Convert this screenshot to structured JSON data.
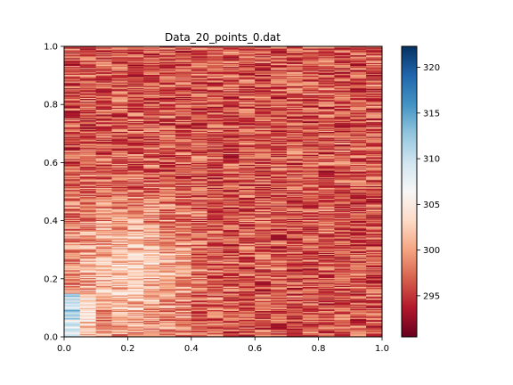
{
  "chart_data": {
    "type": "heatmap",
    "title": "Data_20_points_0.dat",
    "colormap": "RdBu",
    "n_columns": 20,
    "n_rows": 300,
    "xlim": [
      0.0,
      1.0
    ],
    "ylim": [
      0.0,
      1.0
    ],
    "xticks": [
      "0.0",
      "0.2",
      "0.4",
      "0.6",
      "0.8",
      "1.0"
    ],
    "yticks": [
      "0.0",
      "0.2",
      "0.4",
      "0.6",
      "0.8",
      "1.0"
    ],
    "colorbar": {
      "range": [
        290.5,
        322.3
      ],
      "ticks": [
        "295",
        "300",
        "305",
        "310",
        "315",
        "320"
      ]
    },
    "value_summary": {
      "typical_range": [
        292,
        302
      ],
      "warm_region_lower_left": "values about 303-305 around x 0.05-0.35, y 0.05-0.45",
      "cool_spot": "values about 306-312 at x 0.0-0.05, y 0.0-0.15"
    }
  }
}
